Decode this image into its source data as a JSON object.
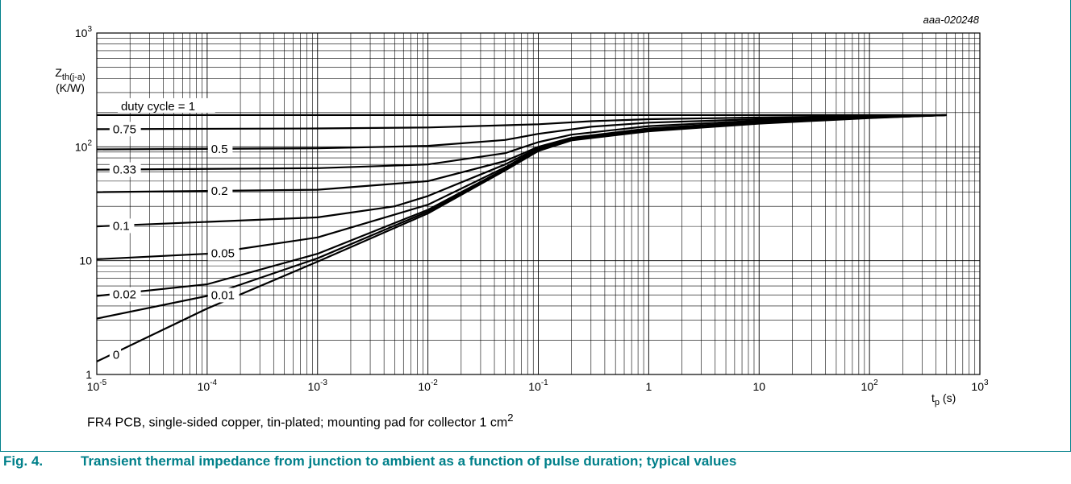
{
  "figure_code": "aaa-020248",
  "note": {
    "text": "FR4 PCB, single-sided copper, tin-plated; mounting pad for collector 1 cm",
    "sup": "2"
  },
  "caption": {
    "number": "Fig. 4.",
    "text": "Transient thermal impedance from junction to ambient as a function of pulse duration; typical values"
  },
  "colors": {
    "accent": "#00808a",
    "grid": "#000000",
    "curve": "#000000"
  },
  "chart_data": {
    "type": "line",
    "x_scale": "log",
    "y_scale": "log",
    "xlim": [
      1e-05,
      1000
    ],
    "ylim": [
      1,
      1000
    ],
    "grid": true,
    "xlabel": {
      "base": "t",
      "sub": "p",
      "unit": " (s)"
    },
    "ylabel": {
      "base": "Z",
      "sub": "th(j-a)",
      "unit": "(K/W)"
    },
    "x_ticks": [
      {
        "base": "10",
        "exp": "-5"
      },
      {
        "base": "10",
        "exp": "-4"
      },
      {
        "base": "10",
        "exp": "-3"
      },
      {
        "base": "10",
        "exp": "-2"
      },
      {
        "base": "10",
        "exp": "-1"
      },
      {
        "base": "1",
        "exp": ""
      },
      {
        "base": "10",
        "exp": ""
      },
      {
        "base": "10",
        "exp": "2"
      },
      {
        "base": "10",
        "exp": "3"
      }
    ],
    "y_ticks": [
      {
        "base": "1",
        "exp": ""
      },
      {
        "base": "10",
        "exp": ""
      },
      {
        "base": "10",
        "exp": "2"
      },
      {
        "base": "10",
        "exp": "3"
      }
    ],
    "series_label_prefix": "duty cycle = ",
    "series": [
      {
        "name": "1",
        "x": [
          1e-05,
          500
        ],
        "y": [
          190,
          190
        ]
      },
      {
        "name": "0.75",
        "x": [
          1e-05,
          0.001,
          0.01,
          0.1,
          0.3,
          1,
          10,
          100,
          500
        ],
        "y": [
          143,
          145,
          148,
          158,
          168,
          175,
          181,
          186,
          190
        ]
      },
      {
        "name": "0.5",
        "x": [
          1e-05,
          0.001,
          0.01,
          0.05,
          0.1,
          0.3,
          1,
          10,
          100,
          500
        ],
        "y": [
          95,
          97,
          102,
          115,
          130,
          150,
          163,
          175,
          184,
          190
        ]
      },
      {
        "name": "0.33",
        "x": [
          1e-05,
          0.001,
          0.01,
          0.05,
          0.1,
          0.2,
          1,
          10,
          100,
          500
        ],
        "y": [
          63,
          65,
          70,
          88,
          110,
          128,
          152,
          170,
          183,
          190
        ]
      },
      {
        "name": "0.2",
        "x": [
          1e-05,
          0.001,
          0.01,
          0.05,
          0.1,
          0.2,
          1,
          10,
          100,
          500
        ],
        "y": [
          40,
          42,
          50,
          75,
          100,
          120,
          145,
          166,
          182,
          190
        ]
      },
      {
        "name": "0.1",
        "x": [
          1e-05,
          0.001,
          0.005,
          0.01,
          0.05,
          0.1,
          0.2,
          1,
          10,
          100,
          500
        ],
        "y": [
          20,
          24,
          30,
          37,
          70,
          98,
          118,
          142,
          164,
          181,
          190
        ]
      },
      {
        "name": "0.05",
        "x": [
          1e-05,
          0.0001,
          0.001,
          0.01,
          0.05,
          0.1,
          0.2,
          1,
          10,
          100,
          500
        ],
        "y": [
          10.3,
          11.5,
          16,
          31,
          66,
          96,
          117,
          140,
          163,
          181,
          190
        ]
      },
      {
        "name": "0.02",
        "x": [
          1e-05,
          0.0001,
          0.001,
          0.01,
          0.05,
          0.1,
          0.2,
          1,
          10,
          100,
          500
        ],
        "y": [
          4.9,
          6.2,
          11.5,
          28,
          64,
          94,
          116,
          139,
          162,
          180,
          190
        ]
      },
      {
        "name": "0.01",
        "x": [
          1e-05,
          0.0001,
          0.001,
          0.01,
          0.05,
          0.1,
          0.2,
          1,
          10,
          100,
          500
        ],
        "y": [
          3.1,
          4.9,
          10.5,
          27,
          63,
          93,
          115,
          138,
          161,
          180,
          190
        ]
      },
      {
        "name": "0",
        "x": [
          1e-05,
          0.0001,
          0.001,
          0.01,
          0.05,
          0.1,
          0.2,
          1,
          10,
          100,
          500
        ],
        "y": [
          1.3,
          3.8,
          9.8,
          26,
          62,
          92,
          114,
          137,
          160,
          179,
          190
        ]
      }
    ]
  }
}
